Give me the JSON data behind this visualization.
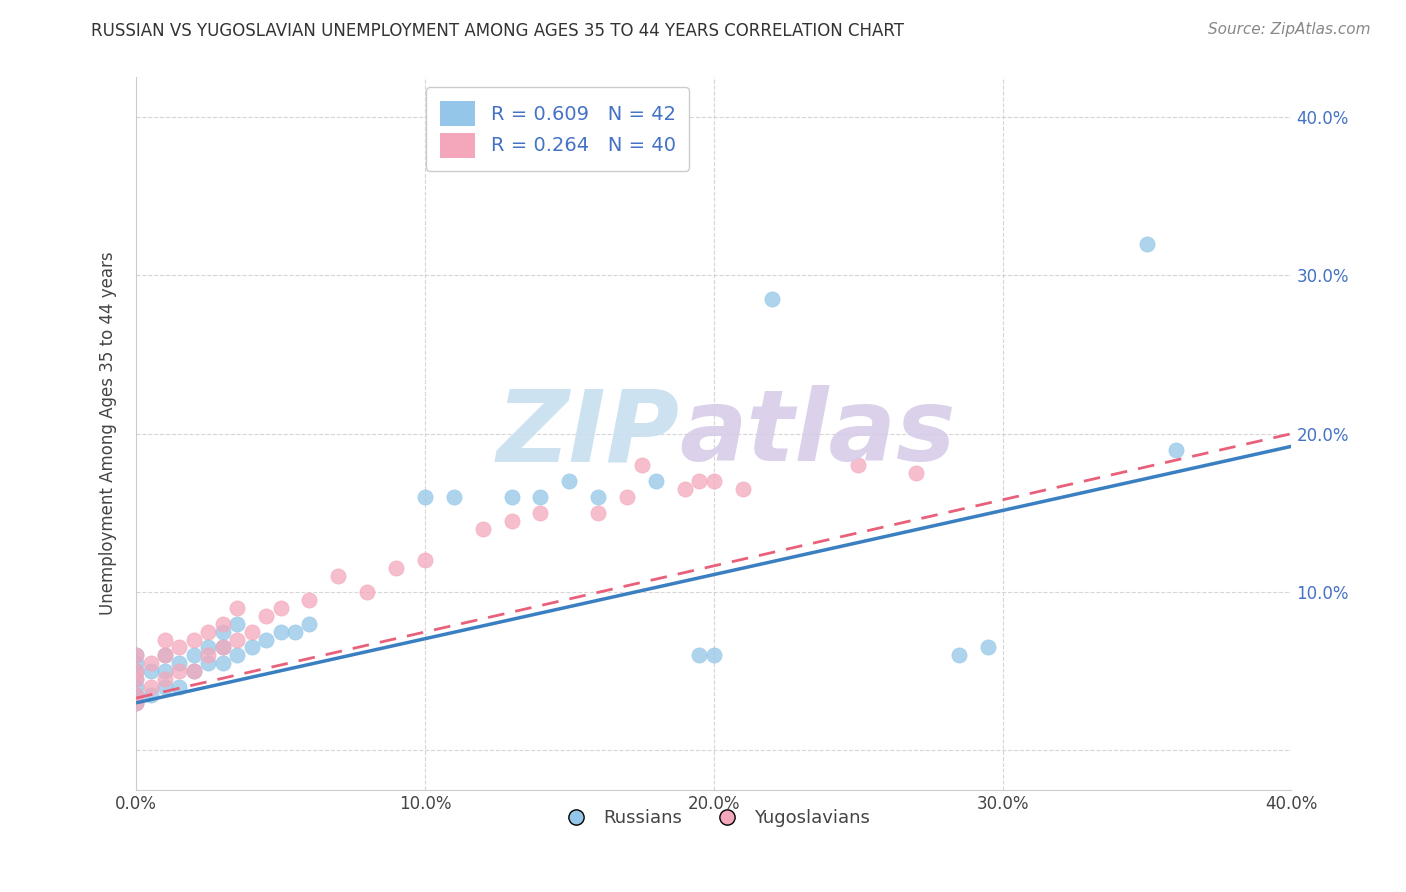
{
  "title": "RUSSIAN VS YUGOSLAVIAN UNEMPLOYMENT AMONG AGES 35 TO 44 YEARS CORRELATION CHART",
  "source": "Source: ZipAtlas.com",
  "ylabel": "Unemployment Among Ages 35 to 44 years",
  "xlim": [
    0.0,
    0.4
  ],
  "ylim": [
    -0.025,
    0.425
  ],
  "xticks": [
    0.0,
    0.1,
    0.2,
    0.3,
    0.4
  ],
  "yticks": [
    0.0,
    0.1,
    0.2,
    0.3,
    0.4
  ],
  "xticklabels": [
    "0.0%",
    "10.0%",
    "20.0%",
    "30.0%",
    "40.0%"
  ],
  "yticklabels": [
    "",
    "10.0%",
    "20.0%",
    "30.0%",
    "40.0%"
  ],
  "russian_color": "#93c6e8",
  "yugoslav_color": "#f4a7bb",
  "russian_line_color": "#3a7fc1",
  "yugoslav_line_color": "#e8607a",
  "R_russian": 0.609,
  "N_russian": 42,
  "R_yugoslav": 0.264,
  "N_yugoslav": 40,
  "background_color": "#ffffff",
  "grid_color": "#cccccc",
  "russian_x": [
    0.0,
    0.0,
    0.0,
    0.0,
    0.0,
    0.0,
    0.0,
    0.005,
    0.005,
    0.01,
    0.01,
    0.01,
    0.015,
    0.015,
    0.02,
    0.02,
    0.025,
    0.025,
    0.03,
    0.03,
    0.03,
    0.035,
    0.035,
    0.04,
    0.045,
    0.05,
    0.055,
    0.06,
    0.1,
    0.11,
    0.13,
    0.14,
    0.15,
    0.16,
    0.18,
    0.195,
    0.2,
    0.22,
    0.285,
    0.295,
    0.35,
    0.36
  ],
  "russian_y": [
    0.03,
    0.035,
    0.04,
    0.045,
    0.05,
    0.055,
    0.06,
    0.035,
    0.05,
    0.04,
    0.05,
    0.06,
    0.04,
    0.055,
    0.05,
    0.06,
    0.055,
    0.065,
    0.055,
    0.065,
    0.075,
    0.06,
    0.08,
    0.065,
    0.07,
    0.075,
    0.075,
    0.08,
    0.16,
    0.16,
    0.16,
    0.16,
    0.17,
    0.16,
    0.17,
    0.06,
    0.06,
    0.285,
    0.06,
    0.065,
    0.32,
    0.19
  ],
  "yugoslav_x": [
    0.0,
    0.0,
    0.0,
    0.0,
    0.0,
    0.005,
    0.005,
    0.01,
    0.01,
    0.01,
    0.015,
    0.015,
    0.02,
    0.02,
    0.025,
    0.025,
    0.03,
    0.03,
    0.035,
    0.035,
    0.04,
    0.045,
    0.05,
    0.06,
    0.07,
    0.08,
    0.09,
    0.1,
    0.12,
    0.13,
    0.14,
    0.16,
    0.17,
    0.175,
    0.19,
    0.195,
    0.2,
    0.21,
    0.25,
    0.27
  ],
  "yugoslav_y": [
    0.03,
    0.035,
    0.045,
    0.05,
    0.06,
    0.04,
    0.055,
    0.045,
    0.06,
    0.07,
    0.05,
    0.065,
    0.05,
    0.07,
    0.06,
    0.075,
    0.065,
    0.08,
    0.07,
    0.09,
    0.075,
    0.085,
    0.09,
    0.095,
    0.11,
    0.1,
    0.115,
    0.12,
    0.14,
    0.145,
    0.15,
    0.15,
    0.16,
    0.18,
    0.165,
    0.17,
    0.17,
    0.165,
    0.18,
    0.175
  ],
  "rus_line_x0": 0.0,
  "rus_line_y0": 0.03,
  "rus_line_x1": 0.4,
  "rus_line_y1": 0.192,
  "yug_line_x0": 0.0,
  "yug_line_y0": 0.033,
  "yug_line_x1": 0.4,
  "yug_line_y1": 0.2
}
